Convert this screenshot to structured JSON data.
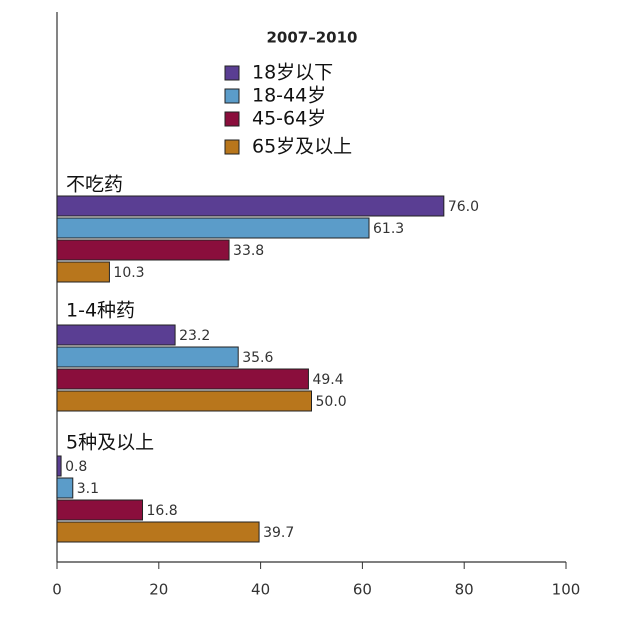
{
  "chart_data": {
    "type": "barh",
    "title": "2007–2010",
    "categories": [
      "不吃药",
      "1-4种药",
      "5种及以上"
    ],
    "series": [
      {
        "name": "18岁以下",
        "color": "#5a3e93",
        "values": [
          76.0,
          23.2,
          0.8
        ],
        "value_labels": [
          "76.0",
          "23.2",
          "0.8"
        ]
      },
      {
        "name": "18-44岁",
        "color": "#5b9cc9",
        "values": [
          61.3,
          35.6,
          3.1
        ],
        "value_labels": [
          "61.3",
          "35.6",
          "3.1"
        ]
      },
      {
        "name": "45-64岁",
        "color": "#8a0e3c",
        "values": [
          33.8,
          49.4,
          16.8
        ],
        "value_labels": [
          "33.8",
          "49.4",
          "16.8"
        ]
      },
      {
        "name": "65岁及以上",
        "color": "#b8761c",
        "values": [
          10.3,
          50.0,
          39.7
        ],
        "value_labels": [
          "10.3",
          "50.0",
          "39.7"
        ]
      }
    ],
    "xlim": [
      0,
      100
    ],
    "xticks": [
      0,
      20,
      40,
      60,
      80,
      100
    ]
  }
}
